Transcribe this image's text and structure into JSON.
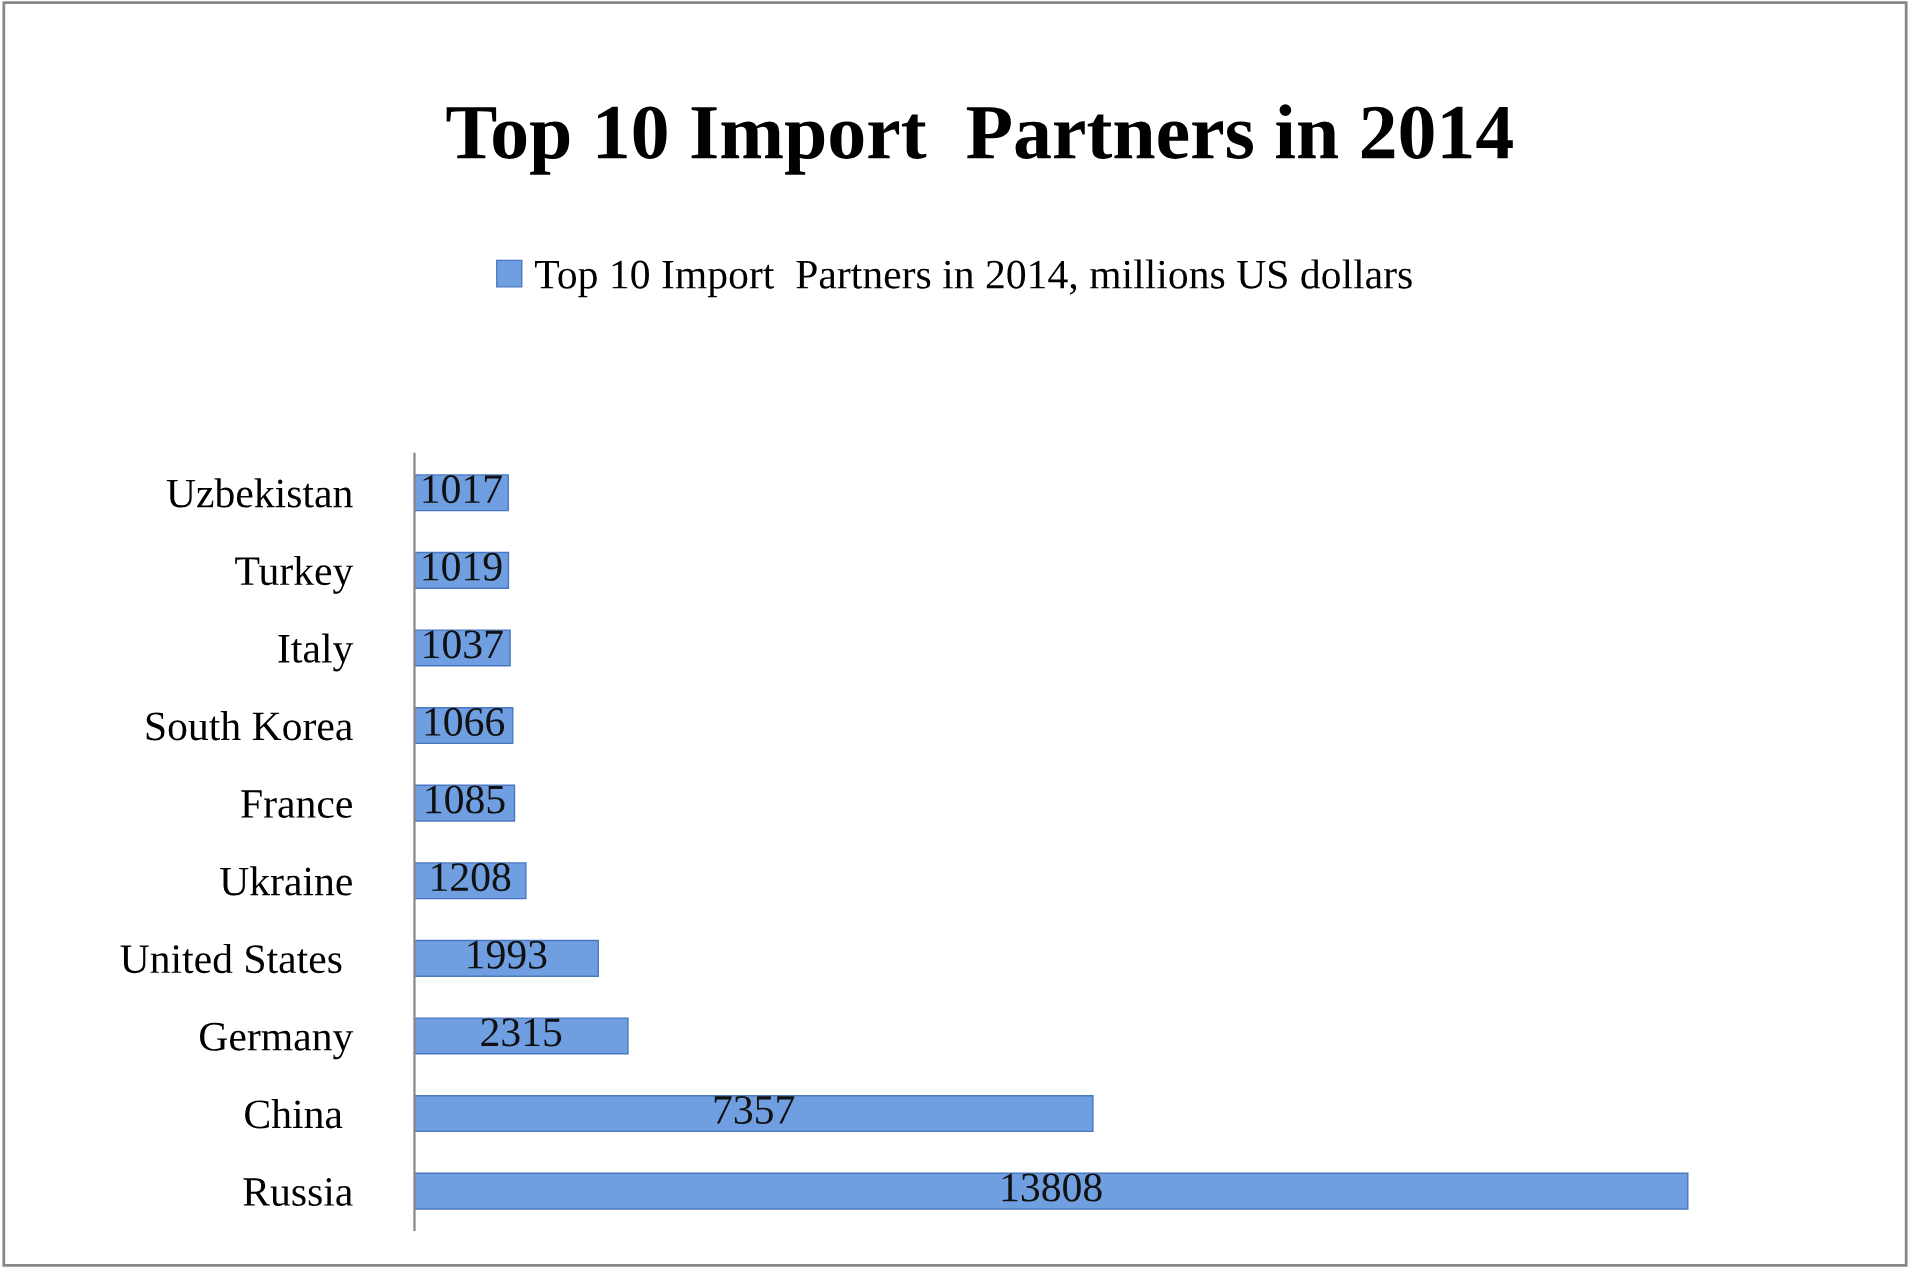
{
  "chart_data": {
    "type": "bar",
    "orientation": "horizontal",
    "title": "Top 10 Import  Partners in 2014",
    "categories": [
      "Uzbekistan",
      "Turkey",
      "Italy",
      "South Korea",
      "France",
      "Ukraine",
      "United States ",
      "Germany",
      "China ",
      "Russia"
    ],
    "series": [
      {
        "name": "Top 10 Import  Partners in 2014, millions US dollars",
        "color": "#6f9fe0",
        "values": [
          1017,
          1019,
          1037,
          1066,
          1085,
          1208,
          1993,
          2315,
          7357,
          13808
        ]
      }
    ],
    "data_labels": true,
    "legend": "top",
    "grid": false
  }
}
